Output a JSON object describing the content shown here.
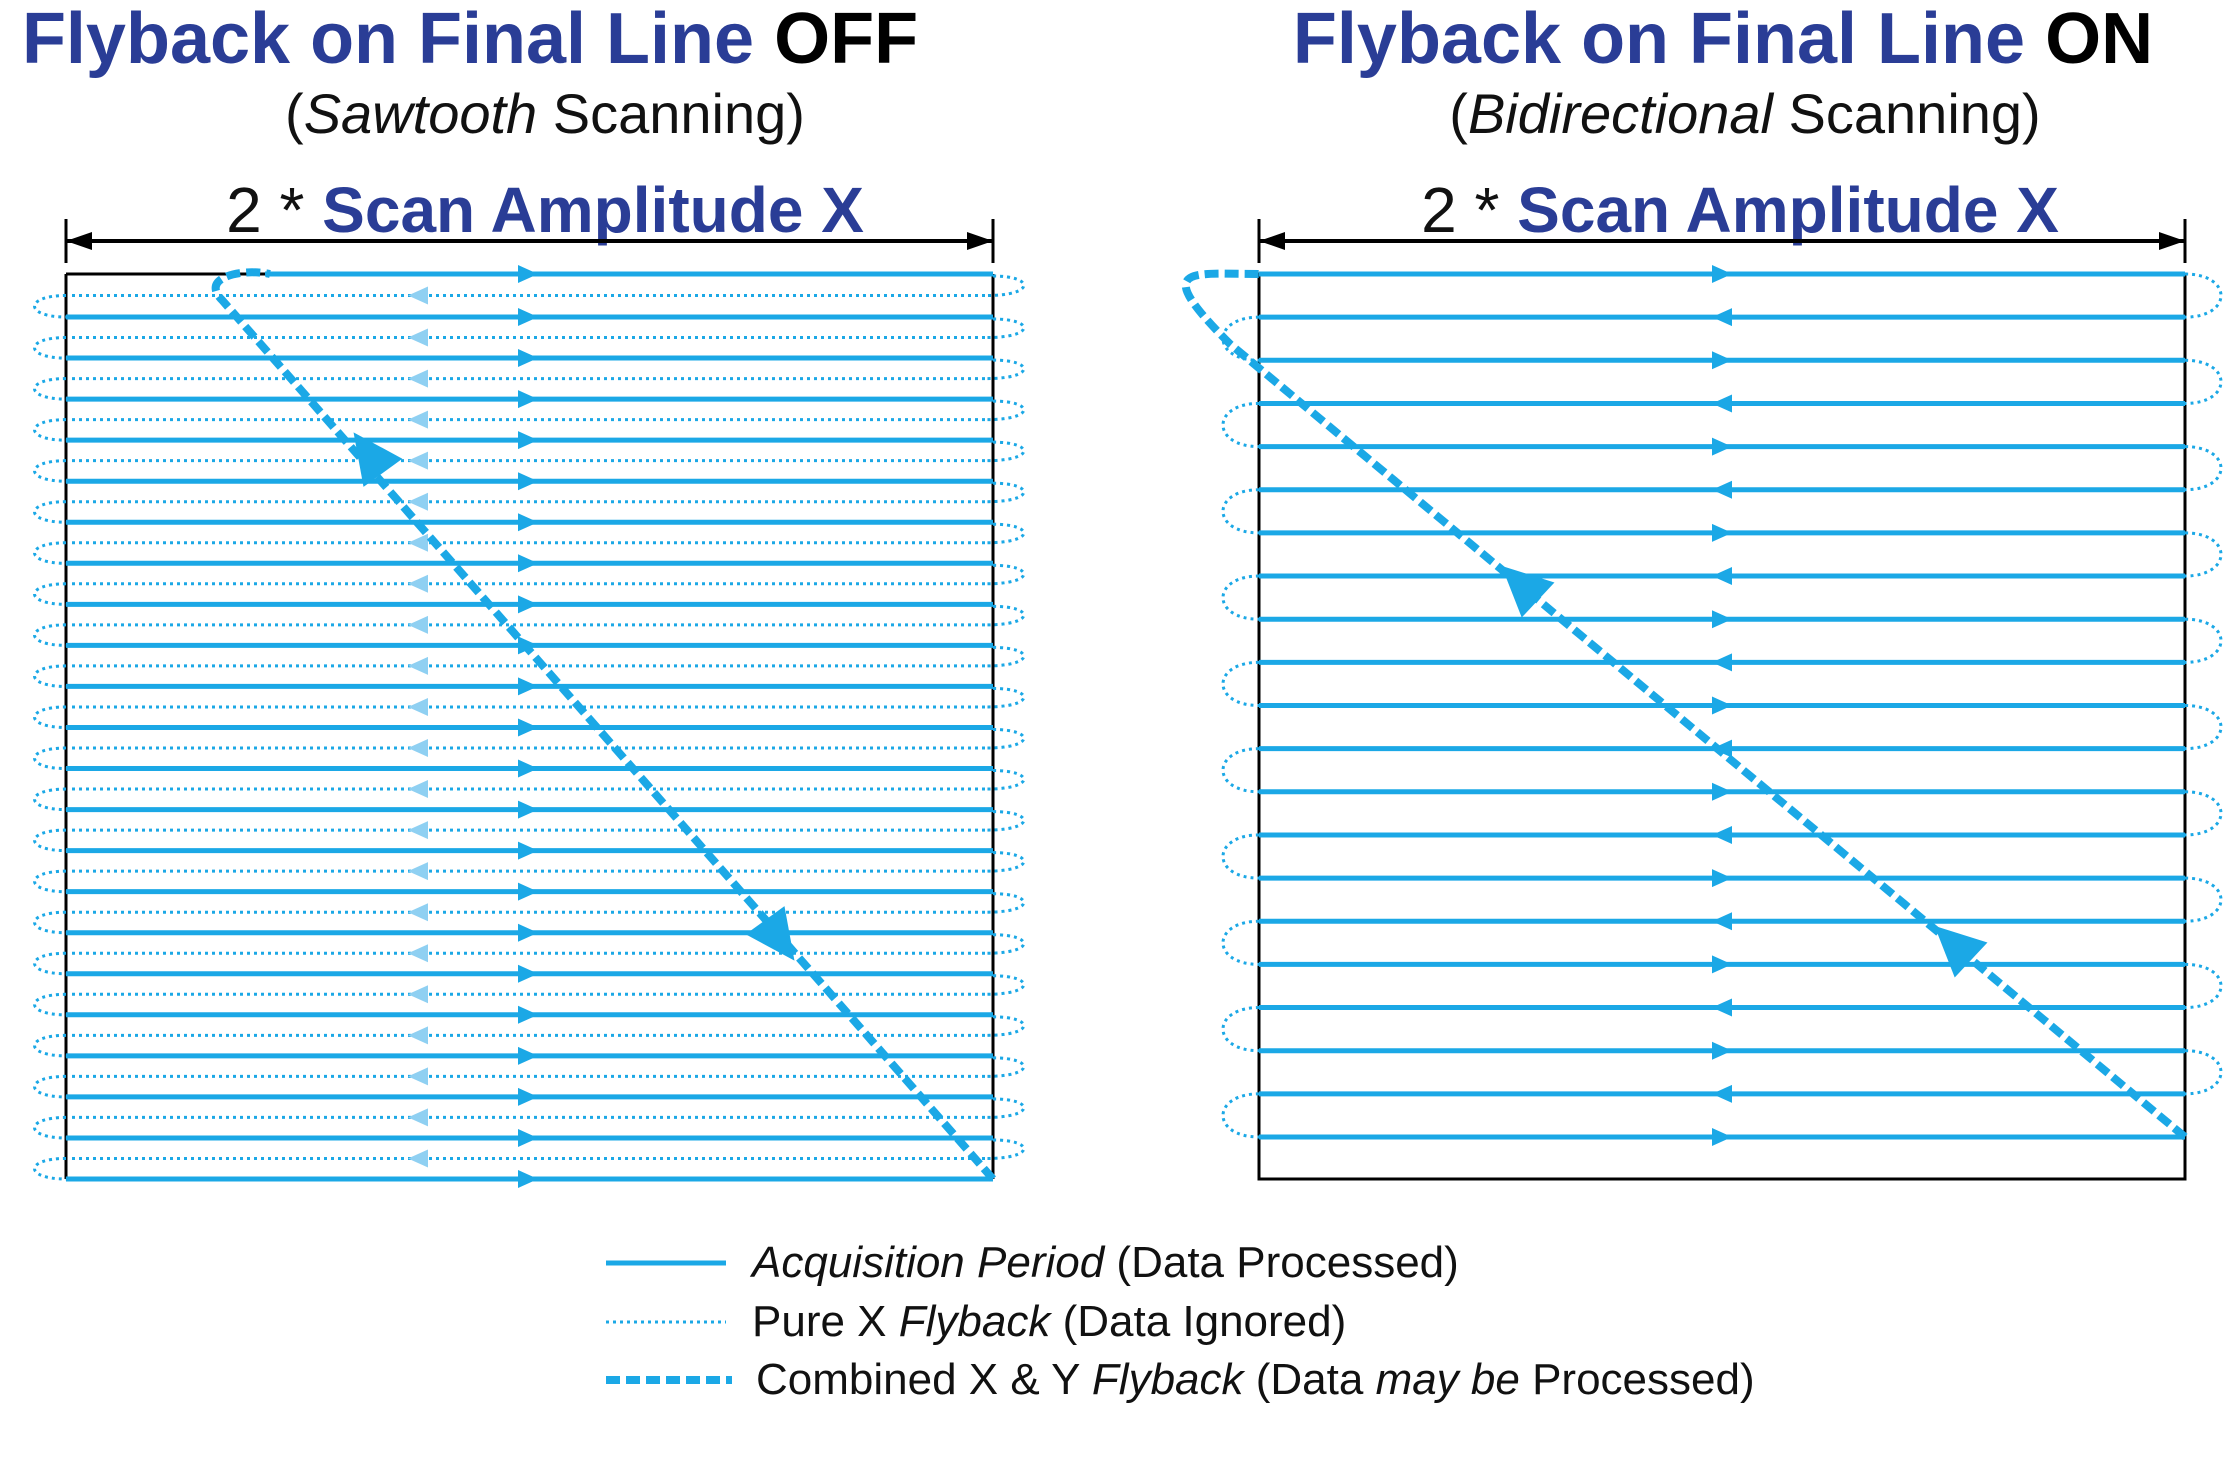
{
  "panels": {
    "left": {
      "title_prefix": "Flyback on Final Line ",
      "title_state": "OFF",
      "subtitle_open": "(",
      "subtitle_italic": "Sawtooth",
      "subtitle_rest": " Scanning)",
      "amplitude_prefix": "2 * ",
      "amplitude_label": "Scan Amplitude X"
    },
    "right": {
      "title_prefix": "Flyback on Final Line ",
      "title_state": "ON",
      "subtitle_open": "(",
      "subtitle_italic": "Bidirectional",
      "subtitle_rest": " Scanning)",
      "amplitude_prefix": "2 * ",
      "amplitude_label": "Scan Amplitude X"
    }
  },
  "legend": {
    "acquisition": {
      "italic": "Acquisition Period",
      "rest": " (Data Processed)"
    },
    "pure_flyback": {
      "plain": "Pure X ",
      "italic": "Flyback",
      "rest": " (Data Ignored)"
    },
    "combined_flyback": {
      "plain": "Combined X & Y ",
      "italic": "Flyback",
      "middle": " (Data ",
      "italic2": "may be",
      "rest": " Processed)"
    }
  },
  "colors": {
    "scan_line": "#1ba8e6",
    "faded_arrow": "#8fd0f2",
    "title_blue": "#2a3d96",
    "frame": "#000000"
  }
}
